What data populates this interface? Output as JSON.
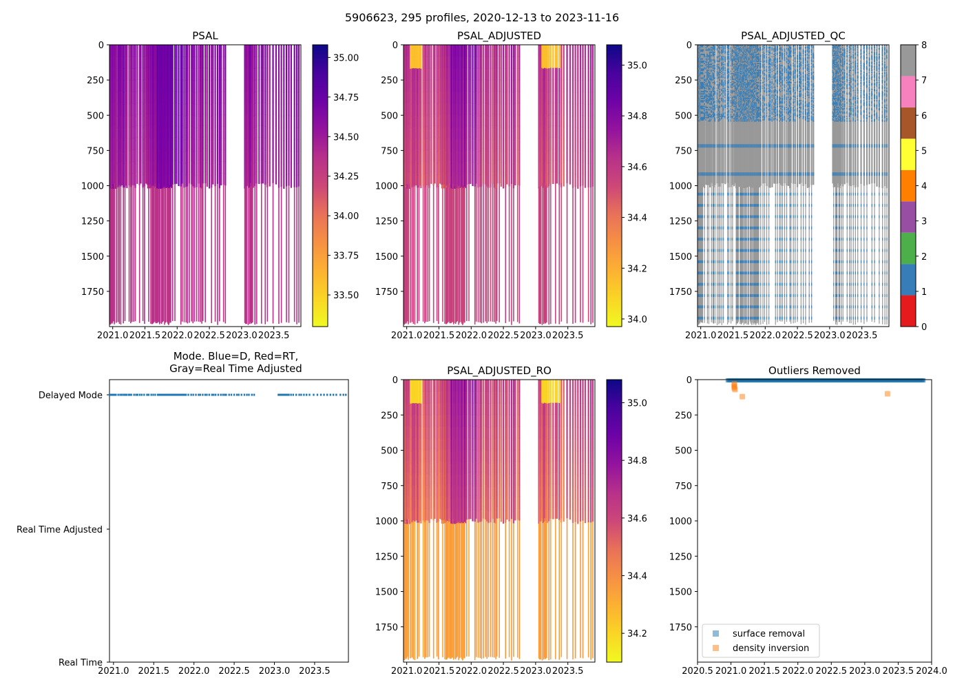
{
  "figure": {
    "suptitle": "5906623, 295 profiles, 2020-12-13 to 2023-11-16"
  },
  "chart_data": [
    {
      "id": "psal",
      "type": "heatmap",
      "title": "PSAL",
      "xlabel": "",
      "ylabel": "",
      "xlim": [
        2020.95,
        2023.92
      ],
      "ylim": [
        2000,
        0
      ],
      "xticks": [
        2021.0,
        2021.5,
        2022.0,
        2022.5,
        2023.0,
        2023.5
      ],
      "xtick_labels": [
        "2021.0",
        "2021.5",
        "2022.0",
        "2022.5",
        "2023.0",
        "2023.5"
      ],
      "yticks": [
        0,
        250,
        500,
        750,
        1000,
        1250,
        1500,
        1750
      ],
      "ytick_labels": [
        "0",
        "250",
        "500",
        "750",
        "1000",
        "1250",
        "1500",
        "1750"
      ],
      "colormap": "plasma_r",
      "clim": [
        33.3,
        35.08
      ],
      "colorbar_ticks": [
        33.5,
        33.75,
        34.0,
        34.25,
        34.5,
        34.75,
        35.0
      ],
      "colorbar_tick_labels": [
        "33.50",
        "33.75",
        "34.00",
        "34.25",
        "34.50",
        "34.75",
        "35.00"
      ],
      "summary": {
        "upper_1000m_value": 34.6,
        "deep_value": 34.35,
        "surface_low_value": 34.2
      }
    },
    {
      "id": "psal_adjusted",
      "type": "heatmap",
      "title": "PSAL_ADJUSTED",
      "xlim": [
        2020.95,
        2023.92
      ],
      "ylim": [
        2000,
        0
      ],
      "xticks": [
        2021.0,
        2021.5,
        2022.0,
        2022.5,
        2023.0,
        2023.5
      ],
      "xtick_labels": [
        "2021.0",
        "2021.5",
        "2022.0",
        "2022.5",
        "2023.0",
        "2023.5"
      ],
      "yticks": [
        0,
        250,
        500,
        750,
        1000,
        1250,
        1500,
        1750
      ],
      "ytick_labels": [
        "0",
        "250",
        "500",
        "750",
        "1000",
        "1250",
        "1500",
        "1750"
      ],
      "colormap": "plasma_r",
      "clim": [
        33.97,
        35.08
      ],
      "colorbar_ticks": [
        34.0,
        34.2,
        34.4,
        34.6,
        34.8,
        35.0
      ],
      "colorbar_tick_labels": [
        "34.0",
        "34.2",
        "34.4",
        "34.6",
        "34.8",
        "35.0"
      ],
      "summary": {
        "upper_1000m_value": 34.65,
        "deep_value": 34.55,
        "surface_low_value": 34.15
      }
    },
    {
      "id": "psal_adjusted_qc",
      "type": "heatmap",
      "title": "PSAL_ADJUSTED_QC",
      "xlim": [
        2020.95,
        2023.92
      ],
      "ylim": [
        2000,
        0
      ],
      "xticks": [
        2021.0,
        2021.5,
        2022.0,
        2022.5,
        2023.0,
        2023.5
      ],
      "xtick_labels": [
        "2021.0",
        "2021.5",
        "2022.0",
        "2022.5",
        "2023.0",
        "2023.5"
      ],
      "yticks": [
        0,
        250,
        500,
        750,
        1000,
        1250,
        1500,
        1750
      ],
      "ytick_labels": [
        "0",
        "250",
        "500",
        "750",
        "1000",
        "1250",
        "1500",
        "1750"
      ],
      "colormap": "Set1 (discrete)",
      "clim": [
        0,
        8
      ],
      "colorbar_ticks": [
        0,
        1,
        2,
        3,
        4,
        5,
        6,
        7,
        8
      ],
      "colorbar_tick_labels": [
        "0",
        "1",
        "2",
        "3",
        "4",
        "5",
        "6",
        "7",
        "8"
      ],
      "qc_colors": [
        "#e41a1c",
        "#377eb8",
        "#4daf4a",
        "#984ea3",
        "#ff7f00",
        "#ffff33",
        "#a65628",
        "#f781bf",
        "#999999"
      ],
      "summary": {
        "dominant_flags": [
          1,
          8
        ],
        "rare_flags": [
          4
        ]
      }
    },
    {
      "id": "mode",
      "type": "scatter",
      "title": "Mode. Blue=D, Red=RT,\nGray=Real Time Adjusted",
      "title_lines": [
        "Mode. Blue=D, Red=RT,",
        "Gray=Real Time Adjusted"
      ],
      "xlim": [
        2020.95,
        2023.92
      ],
      "xticks": [
        2021.0,
        2021.5,
        2022.0,
        2022.5,
        2023.0,
        2023.5
      ],
      "xtick_labels": [
        "2021.0",
        "2021.5",
        "2022.0",
        "2022.5",
        "2023.0",
        "2023.5"
      ],
      "ycategories": [
        "Real Time",
        "Real Time Adjusted",
        "Delayed Mode"
      ],
      "series": [
        {
          "name": "Delayed Mode",
          "y": "Delayed Mode",
          "x_range": [
            2020.95,
            2023.88
          ],
          "color": "#1f77b4",
          "count": 295
        }
      ]
    },
    {
      "id": "psal_adjusted_ro",
      "type": "heatmap",
      "title": "PSAL_ADJUSTED_RO",
      "xlim": [
        2020.95,
        2023.92
      ],
      "ylim": [
        2000,
        0
      ],
      "xticks": [
        2021.0,
        2021.5,
        2022.0,
        2022.5,
        2023.0,
        2023.5
      ],
      "xtick_labels": [
        "2021.0",
        "2021.5",
        "2022.0",
        "2022.5",
        "2023.0",
        "2023.5"
      ],
      "yticks": [
        0,
        250,
        500,
        750,
        1000,
        1250,
        1500,
        1750
      ],
      "ytick_labels": [
        "0",
        "250",
        "500",
        "750",
        "1000",
        "1250",
        "1500",
        "1750"
      ],
      "colormap": "plasma_r",
      "clim": [
        34.1,
        35.08
      ],
      "colorbar_ticks": [
        34.2,
        34.4,
        34.6,
        34.8,
        35.0
      ],
      "colorbar_tick_labels": [
        "34.2",
        "34.4",
        "34.6",
        "34.8",
        "35.0"
      ],
      "summary": {
        "upper_1000m_value": 34.62,
        "deep_value": 34.35,
        "surface_low_value": 34.2
      }
    },
    {
      "id": "outliers",
      "type": "scatter",
      "title": "Outliers Removed",
      "xlim": [
        2020.5,
        2024.0
      ],
      "ylim": [
        2000,
        0
      ],
      "xticks": [
        2020.5,
        2021.0,
        2021.5,
        2022.0,
        2022.5,
        2023.0,
        2023.5,
        2024.0
      ],
      "xtick_labels": [
        "2020.5",
        "2021.0",
        "2021.5",
        "2022.0",
        "2022.5",
        "2023.0",
        "2023.5",
        "2024.0"
      ],
      "yticks": [
        0,
        250,
        500,
        750,
        1000,
        1250,
        1500,
        1750
      ],
      "ytick_labels": [
        "0",
        "250",
        "500",
        "750",
        "1000",
        "1250",
        "1500",
        "1750"
      ],
      "legend": {
        "position": "lower-left",
        "entries": [
          {
            "label": "surface removal",
            "color": "#1f77b4"
          },
          {
            "label": "density inversion",
            "color": "#ff7f0e"
          }
        ]
      },
      "series": [
        {
          "name": "surface removal",
          "color": "#1f77b4",
          "x_range": [
            2020.95,
            2023.88
          ],
          "y": 5
        },
        {
          "name": "density inversion",
          "color": "#ff7f0e",
          "points": [
            {
              "x": 2021.05,
              "y": 30
            },
            {
              "x": 2021.05,
              "y": 40
            },
            {
              "x": 2021.05,
              "y": 50
            },
            {
              "x": 2021.05,
              "y": 60
            },
            {
              "x": 2021.06,
              "y": 70
            },
            {
              "x": 2021.17,
              "y": 120
            },
            {
              "x": 2023.34,
              "y": 100
            }
          ]
        }
      ]
    }
  ]
}
